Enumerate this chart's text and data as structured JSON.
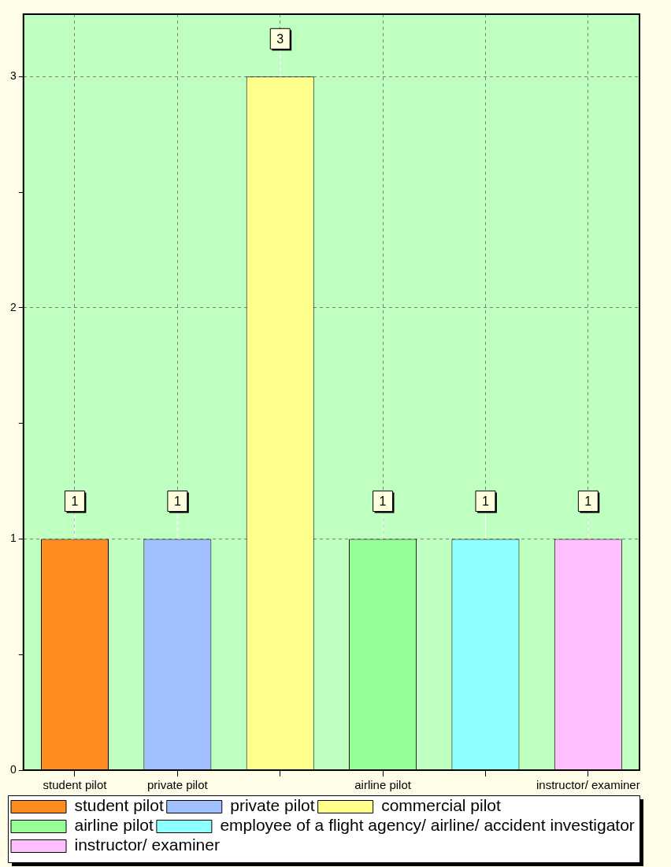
{
  "chart_data": {
    "type": "bar",
    "categories": [
      "student pilot",
      "private pilot",
      null,
      "airline pilot",
      null,
      "instructor/ examiner"
    ],
    "series": [
      {
        "name": "student pilot",
        "color": "#ff8c1e",
        "values": [
          1,
          null,
          null,
          null,
          null,
          null
        ]
      },
      {
        "name": "private pilot",
        "color": "#a0bfff",
        "values": [
          null,
          1,
          null,
          null,
          null,
          null
        ]
      },
      {
        "name": "commercial pilot",
        "color": "#ffff8c",
        "values": [
          null,
          null,
          3,
          null,
          null,
          null
        ]
      },
      {
        "name": "airline pilot",
        "color": "#96ff96",
        "values": [
          null,
          null,
          null,
          1,
          null,
          null
        ]
      },
      {
        "name": "employee of a flight agency/ airline/ accident investigator",
        "color": "#8cffff",
        "values": [
          null,
          null,
          null,
          null,
          1,
          null
        ]
      },
      {
        "name": "instructor/ examiner",
        "color": "#ffbfff",
        "values": [
          null,
          null,
          null,
          null,
          null,
          1
        ]
      }
    ],
    "ylim": [
      0,
      3.27
    ],
    "yticks": [
      0,
      {
        "value": 0.5,
        "label": null
      },
      1,
      {
        "value": 1.5,
        "label": null
      },
      2,
      {
        "value": 2.5,
        "label": null
      },
      3
    ],
    "grid": true,
    "legend": "bottom",
    "data_labels": true
  }
}
